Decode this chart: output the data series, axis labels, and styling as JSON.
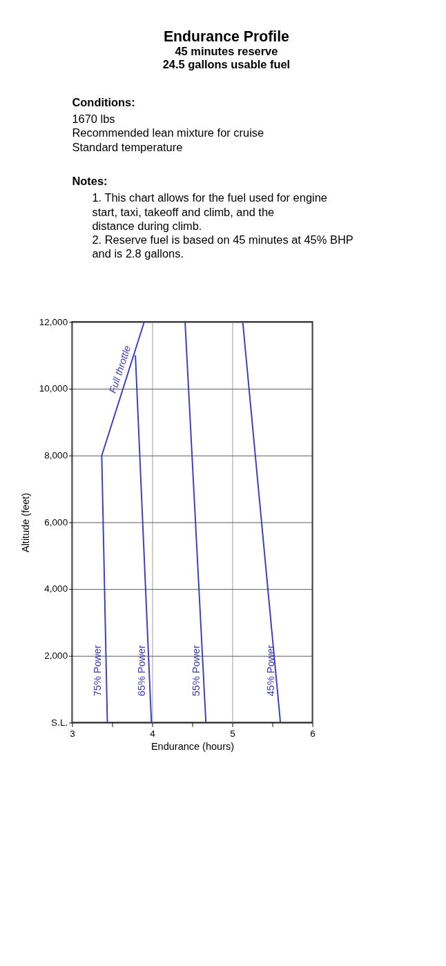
{
  "chart_data": {
    "type": "line",
    "title": "Endurance Profile",
    "subtitle": "45 minutes reserve\n24.5 gallons usable fuel",
    "annotations": [
      "Conditions:",
      "1670 lbs",
      "Recommended lean mixture for cruise",
      "Standard temperature",
      "Notes:",
      "1. This chart allows for the fuel used for engine start, taxi, takeoff and climb, and the distance during climb.",
      "2. Reserve fuel is based on 45 minutes at 45% BHP and is 2.8 gallons.",
      {
        "text": "Full throttle",
        "x": 3.7,
        "y": 10500
      }
    ],
    "xlabel": "Endurance (hours)",
    "ylabel": "Altitude (feet)",
    "series": [
      {
        "name": "75% Power",
        "color": "#3a3ac8",
        "x": [
          3.44,
          3.37,
          3.9
        ],
        "values": [
          0,
          8000,
          12000
        ]
      },
      {
        "name": "65% Power",
        "color": "#3a3ac8",
        "x": [
          3.99,
          3.79
        ],
        "values": [
          0,
          11000
        ]
      },
      {
        "name": "55% Power",
        "color": "#3a3ac8",
        "x": [
          4.67,
          4.41
        ],
        "values": [
          0,
          12000
        ]
      },
      {
        "name": "45% Power",
        "color": "#3a3ac8",
        "x": [
          5.6,
          5.13
        ],
        "values": [
          0,
          12000
        ]
      }
    ],
    "xlim": [
      3,
      6
    ],
    "xticks": [
      3,
      {
        "value": 3.5,
        "label": null
      },
      4,
      {
        "value": 4.5,
        "label": null
      },
      5,
      {
        "value": 5.5,
        "label": null
      },
      6
    ],
    "ylim": [
      0,
      12000
    ],
    "yticks": [
      {
        "value": 0,
        "label": "S.L."
      },
      {
        "value": 2000,
        "label": "2,000"
      },
      {
        "value": 4000,
        "label": "4,000"
      },
      {
        "value": 6000,
        "label": "6,000"
      },
      {
        "value": 8000,
        "label": "8,000"
      },
      {
        "value": 10000,
        "label": "10,000"
      },
      {
        "value": 12000,
        "label": "12,000"
      }
    ],
    "grid": true,
    "marker": "none",
    "line_style": "solid"
  }
}
